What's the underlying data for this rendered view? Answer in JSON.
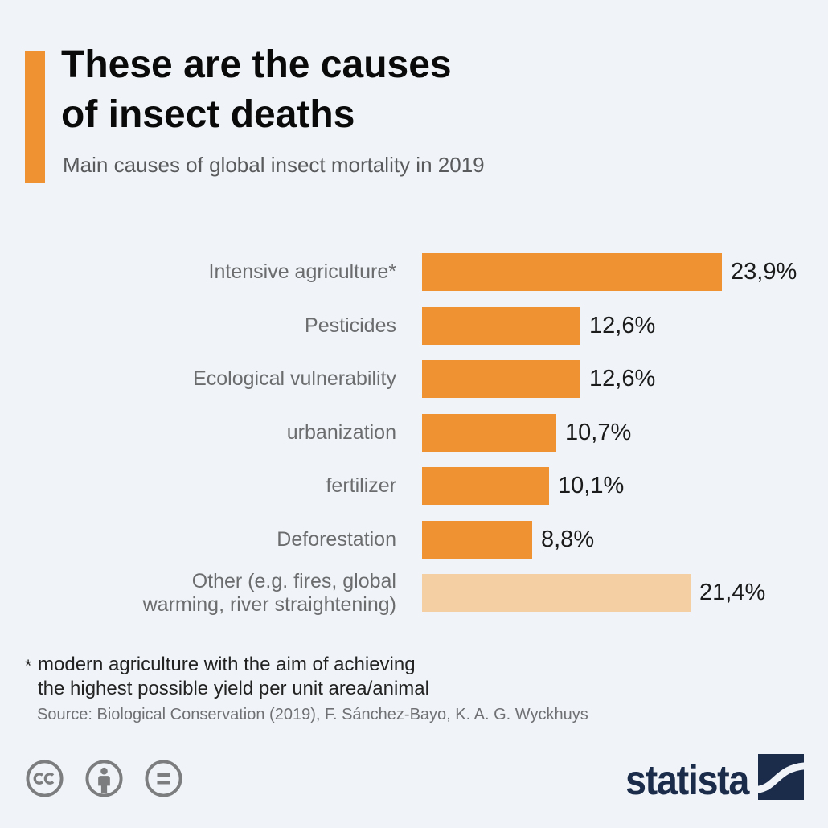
{
  "page": {
    "background_color": "#f0f4f8"
  },
  "header": {
    "accent_color": "#ef9332",
    "title": "These are the causes\nof insect deaths",
    "subtitle": "Main causes of global insect mortality in 2019"
  },
  "chart_data": {
    "type": "bar",
    "orientation": "horizontal",
    "title": "These are the causes of insect deaths",
    "subtitle": "Main causes of global insect mortality in 2019",
    "categories": [
      "Intensive agriculture*",
      "Pesticides",
      "Ecological vulnerability",
      "urbanization",
      "fertilizer",
      "Deforestation",
      "Other (e.g. fires, global\nwarming, river straightening)"
    ],
    "values": [
      23.9,
      12.6,
      12.6,
      10.7,
      10.1,
      8.8,
      21.4
    ],
    "value_labels": [
      "23,9%",
      "12,6%",
      "12,6%",
      "10,7%",
      "10,1%",
      "8,8%",
      "21,4%"
    ],
    "bar_colors": [
      "#ef9332",
      "#ef9332",
      "#ef9332",
      "#ef9332",
      "#ef9332",
      "#ef9332",
      "#f5cfa4"
    ],
    "unit": "%",
    "xlim": [
      0,
      25
    ],
    "grid": false,
    "legend": false,
    "axes_shown": false,
    "label_color": "#6b6c6e",
    "value_color": "#1b1b1b"
  },
  "footnote": {
    "marker": "*",
    "text": "modern agriculture with the aim of achieving\nthe highest possible yield per unit area/animal"
  },
  "source": {
    "text": "Source: Biological Conservation (2019), F. Sánchez-Bayo, K. A. G. Wyckhuys"
  },
  "footer": {
    "license_icons": [
      {
        "name": "cc-icon"
      },
      {
        "name": "attribution-person-icon"
      },
      {
        "name": "equal-sign-icon"
      }
    ],
    "icon_color": "#7c7d7e",
    "brand_text": "statista",
    "brand_color": "#1b2b4a"
  }
}
